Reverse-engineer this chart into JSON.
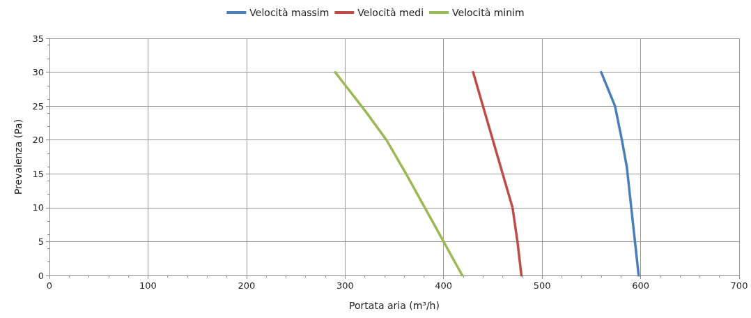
{
  "chart_data": {
    "type": "line",
    "xlabel": "Portata aria (m³/h)",
    "ylabel": "Prevalenza (Pa)",
    "xlim": [
      0,
      700
    ],
    "xticks": [
      0,
      100,
      200,
      300,
      400,
      500,
      600,
      700
    ],
    "ylim": [
      0,
      35
    ],
    "yticks": [
      0,
      5,
      10,
      15,
      20,
      25,
      30,
      35
    ],
    "grid": true,
    "legend": "top",
    "marker": "none",
    "line_style": "solid",
    "series": [
      {
        "name": "Velocità massim",
        "color": "#4a7ebb",
        "x": [
          598,
          592,
          586,
          581,
          574,
          560
        ],
        "values": [
          0,
          8,
          16,
          20,
          25,
          30
        ]
      },
      {
        "name": "Velocità medi",
        "color": "#be4b48",
        "x": [
          479,
          475,
          470,
          460,
          450,
          440,
          430
        ],
        "values": [
          0,
          5,
          10,
          15,
          20,
          25,
          30
        ]
      },
      {
        "name": "Velocità minim",
        "color": "#98b954",
        "x": [
          419,
          400,
          381,
          362,
          342,
          322,
          290
        ],
        "values": [
          0,
          5,
          10,
          15,
          20,
          24,
          30
        ]
      }
    ]
  }
}
